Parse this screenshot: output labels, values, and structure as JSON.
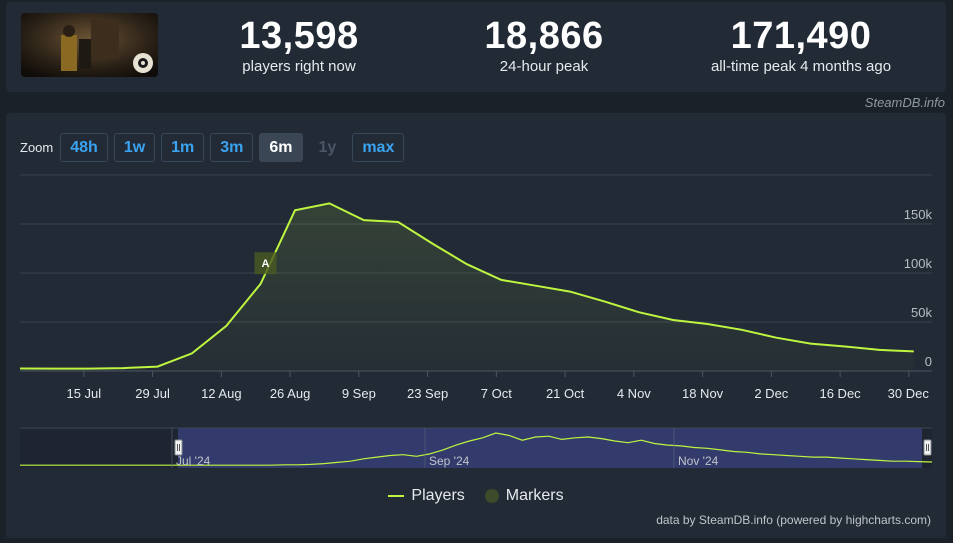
{
  "stats": {
    "current": {
      "value": "13,598",
      "label": "players right now"
    },
    "peak24": {
      "value": "18,866",
      "label": "24-hour peak"
    },
    "alltime": {
      "value": "171,490",
      "label": "all-time peak 4 months ago"
    }
  },
  "credit_top": "SteamDB.info",
  "zoom": {
    "label": "Zoom",
    "buttons": [
      {
        "label": "48h",
        "state": "normal"
      },
      {
        "label": "1w",
        "state": "normal"
      },
      {
        "label": "1m",
        "state": "normal"
      },
      {
        "label": "3m",
        "state": "normal"
      },
      {
        "label": "6m",
        "state": "active"
      },
      {
        "label": "1y",
        "state": "disabled"
      },
      {
        "label": "max",
        "state": "normal"
      }
    ]
  },
  "legend": {
    "players": "Players",
    "markers": "Markers"
  },
  "credit_bottom": "data by SteamDB.info (powered by highcharts.com)",
  "colors": {
    "line": "#bef540",
    "marker": "#4a5a22",
    "navigator_mask": "#3a4380"
  },
  "chart_data": {
    "type": "line",
    "x_axis": "date",
    "x_ticks": [
      "15 Jul",
      "29 Jul",
      "12 Aug",
      "26 Aug",
      "9 Sep",
      "23 Sep",
      "7 Oct",
      "21 Oct",
      "4 Nov",
      "18 Nov",
      "2 Dec",
      "16 Dec",
      "30 Dec"
    ],
    "y_ticks": [
      0,
      50000,
      100000,
      150000
    ],
    "y_tick_labels": [
      "0",
      "50k",
      "100k",
      "150k"
    ],
    "ylim": [
      0,
      200000
    ],
    "series": [
      {
        "name": "Players",
        "points": [
          [
            "2024-07-02",
            2600
          ],
          [
            "2024-07-09",
            2500
          ],
          [
            "2024-07-16",
            2400
          ],
          [
            "2024-07-23",
            3000
          ],
          [
            "2024-07-30",
            4500
          ],
          [
            "2024-08-06",
            18000
          ],
          [
            "2024-08-13",
            46000
          ],
          [
            "2024-08-20",
            89000
          ],
          [
            "2024-08-27",
            164000
          ],
          [
            "2024-09-03",
            171000
          ],
          [
            "2024-09-10",
            154000
          ],
          [
            "2024-09-17",
            152000
          ],
          [
            "2024-09-24",
            130000
          ],
          [
            "2024-10-01",
            109000
          ],
          [
            "2024-10-08",
            93000
          ],
          [
            "2024-10-15",
            87000
          ],
          [
            "2024-10-22",
            81000
          ],
          [
            "2024-10-29",
            71000
          ],
          [
            "2024-11-05",
            60000
          ],
          [
            "2024-11-12",
            52000
          ],
          [
            "2024-11-19",
            48000
          ],
          [
            "2024-11-26",
            42000
          ],
          [
            "2024-12-03",
            34000
          ],
          [
            "2024-12-10",
            28000
          ],
          [
            "2024-12-17",
            25000
          ],
          [
            "2024-12-24",
            21500
          ],
          [
            "2024-12-31",
            20000
          ]
        ]
      }
    ],
    "markers": [
      {
        "date": "2024-08-21",
        "value": 110000,
        "label": "A"
      }
    ],
    "navigator": {
      "labels": [
        "Jul '24",
        "Sep '24",
        "Nov '24"
      ],
      "profile": [
        2,
        2,
        2,
        2,
        2,
        2,
        2,
        2,
        2,
        2,
        2,
        2,
        2,
        2,
        2,
        2,
        2,
        2,
        2,
        2,
        3,
        3,
        4,
        6,
        9,
        12,
        18,
        22,
        26,
        28,
        24,
        30,
        40,
        52,
        62,
        70,
        82,
        76,
        64,
        72,
        74,
        66,
        70,
        72,
        68,
        62,
        58,
        64,
        56,
        52,
        50,
        46,
        44,
        40,
        36,
        34,
        30,
        28,
        26,
        24,
        22,
        22,
        20,
        18,
        16,
        14,
        12,
        12,
        11,
        10
      ]
    },
    "grid": true,
    "legend_position": "bottom-center"
  }
}
